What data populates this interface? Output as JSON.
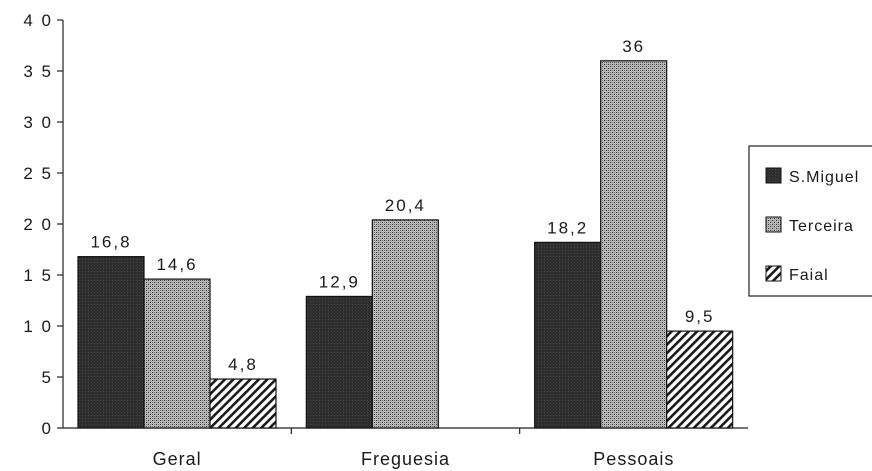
{
  "chart_data": {
    "type": "bar",
    "categories": [
      "Geral",
      "Freguesia",
      "Pessoais"
    ],
    "series": [
      {
        "name": "S.Miguel",
        "color": "#2e2e2e",
        "pattern": "solid-dark",
        "values": [
          16.8,
          12.9,
          18.2
        ],
        "labels": [
          "16,8",
          "12,9",
          "18,2"
        ]
      },
      {
        "name": "Terceira",
        "color": "#9a9a9a",
        "pattern": "stipple",
        "values": [
          14.6,
          20.4,
          36
        ],
        "labels": [
          "14,6",
          "20,4",
          "36"
        ]
      },
      {
        "name": "Faial",
        "color": "#ffffff",
        "pattern": "diagonal-hatch",
        "values": [
          4.8,
          null,
          9.5
        ],
        "labels": [
          "4,8",
          "",
          "9,5"
        ]
      }
    ],
    "ylim": [
      0,
      40
    ],
    "yticks": [
      0,
      5,
      10,
      15,
      20,
      25,
      30,
      35,
      40
    ],
    "ytick_labels": [
      "0",
      "5",
      "1 0",
      "1 5",
      "2 0",
      "2 5",
      "3 0",
      "3 5",
      "4 0"
    ],
    "title": "",
    "xlabel": "",
    "ylabel": "",
    "grid": false,
    "legend_position": "right"
  }
}
